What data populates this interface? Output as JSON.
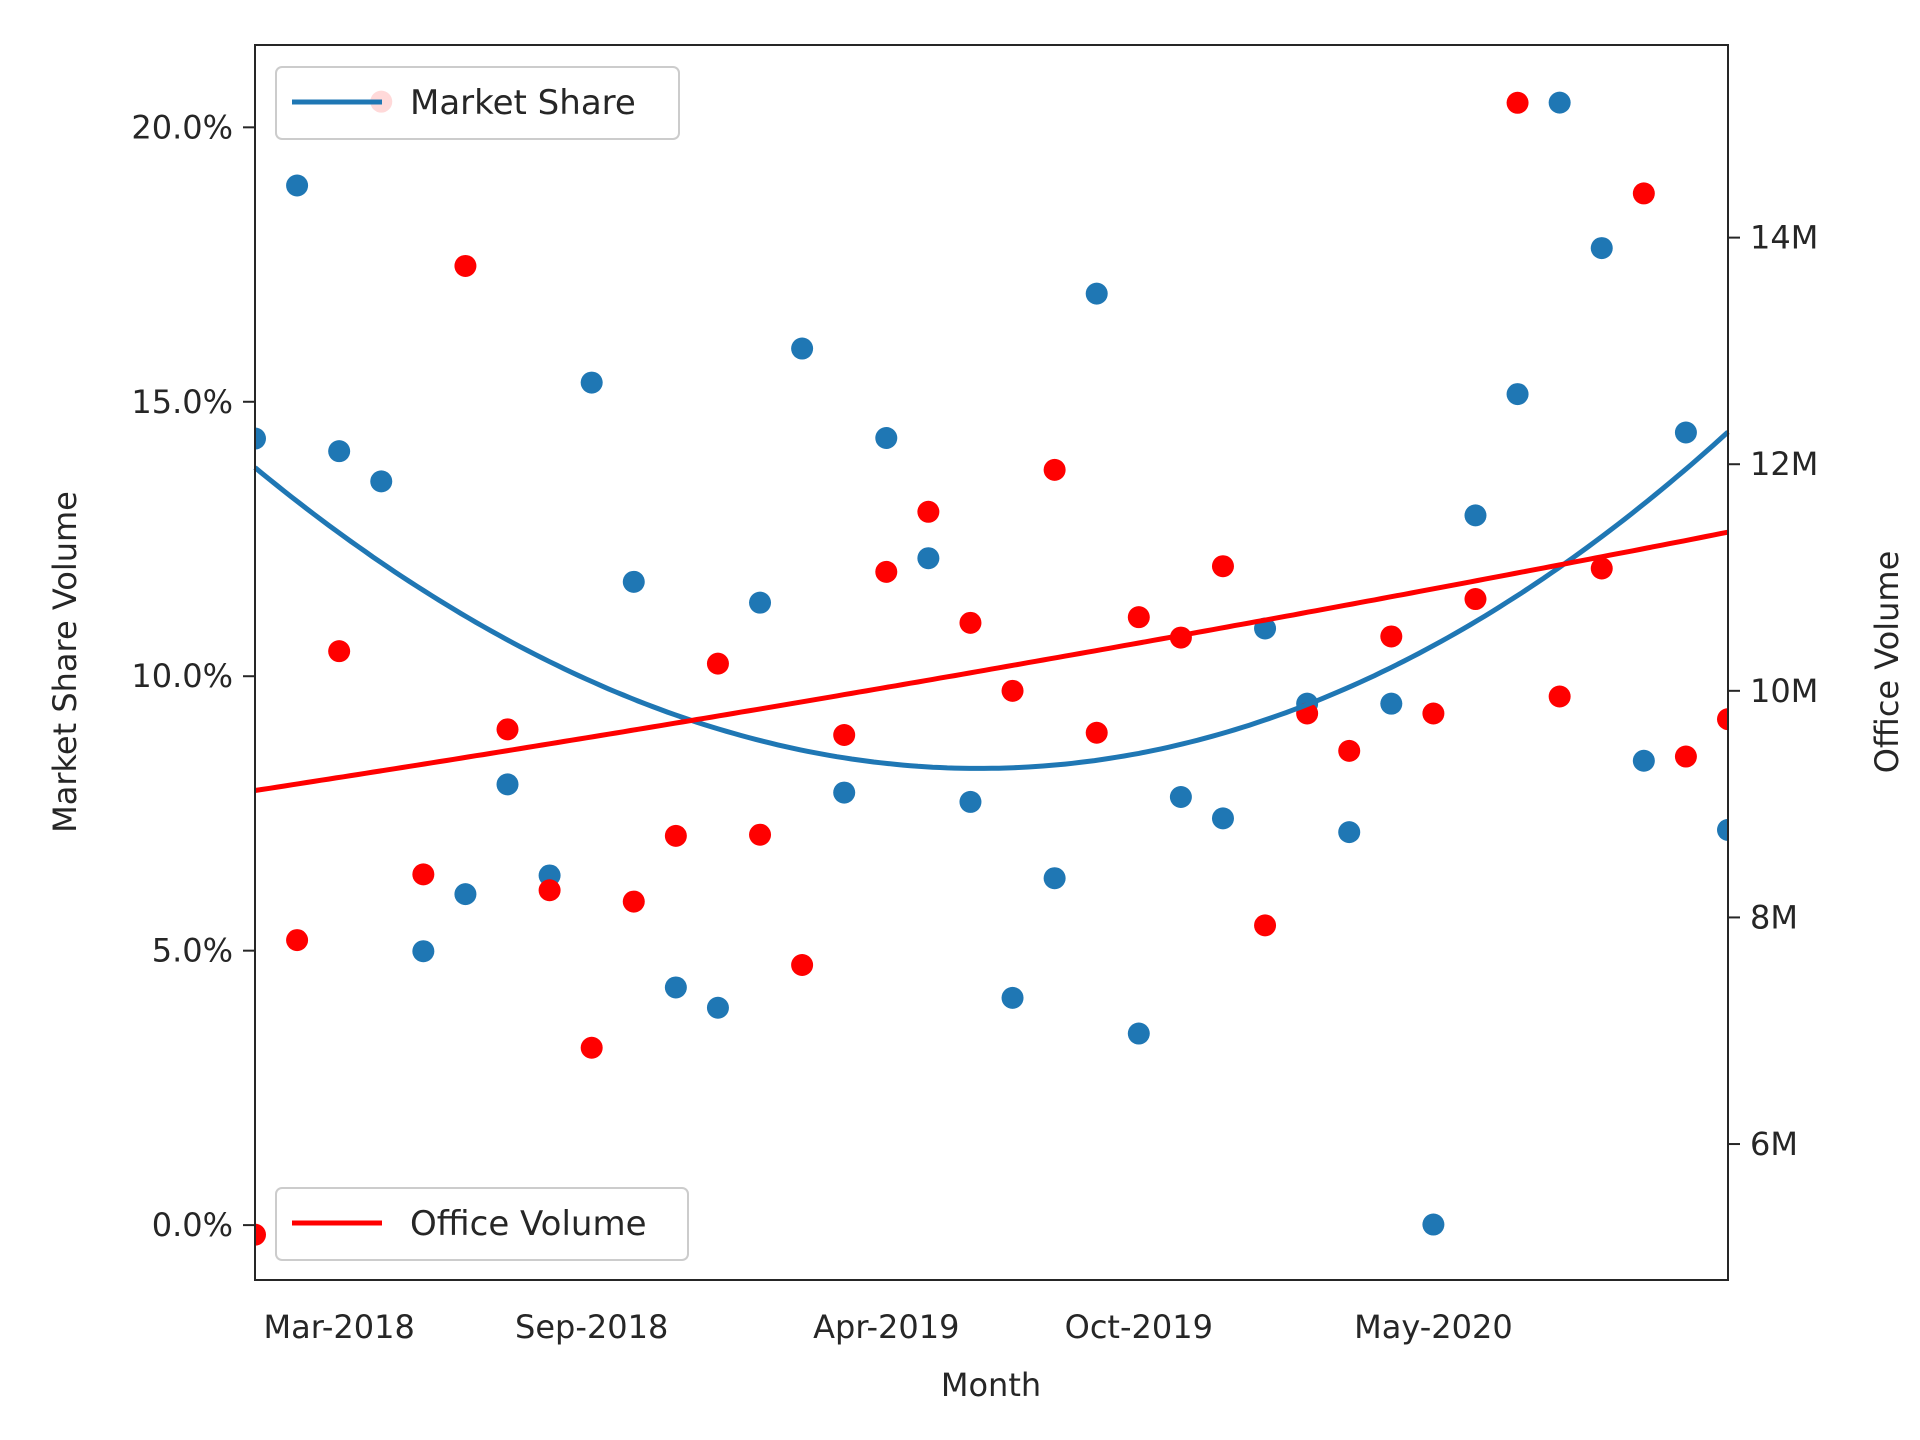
{
  "chart_data": {
    "type": "scatter",
    "xlabel": "Month",
    "ylabel_left": "Market Share Volume",
    "ylabel_right": "Office Volume",
    "x_tick_labels": [
      "Mar-2018",
      "Sep-2018",
      "Apr-2019",
      "Oct-2019",
      "May-2020"
    ],
    "x_tick_months": [
      "2018-03",
      "2018-09",
      "2019-04",
      "2019-10",
      "2020-05"
    ],
    "xlim": [
      "2018-01",
      "2020-12"
    ],
    "left_axis": {
      "ylim": [
        -0.01,
        0.215
      ],
      "ticks": [
        0.0,
        0.05,
        0.1,
        0.15,
        0.2
      ],
      "tick_labels": [
        "0.0%",
        "5.0%",
        "10.0%",
        "15.0%",
        "20.0%"
      ]
    },
    "right_axis": {
      "ylim": [
        4800000,
        15700000
      ],
      "ticks": [
        6000000,
        8000000,
        10000000,
        12000000,
        14000000
      ],
      "tick_labels": [
        "6M",
        "8M",
        "10M",
        "12M",
        "14M"
      ]
    },
    "months": [
      "2018-01",
      "2018-02",
      "2018-03",
      "2018-04",
      "2018-05",
      "2018-06",
      "2018-07",
      "2018-08",
      "2018-09",
      "2018-10",
      "2018-11",
      "2018-12",
      "2019-01",
      "2019-02",
      "2019-03",
      "2019-04",
      "2019-05",
      "2019-06",
      "2019-07",
      "2019-08",
      "2019-09",
      "2019-10",
      "2019-11",
      "2019-12",
      "2020-01",
      "2020-02",
      "2020-03",
      "2020-04",
      "2020-05",
      "2020-06",
      "2020-07",
      "2020-08",
      "2020-09",
      "2020-10",
      "2020-11",
      "2020-12"
    ],
    "series": [
      {
        "name": "Market Share",
        "axis": "left",
        "color": "#1f77b4",
        "values": [
          0.1433,
          0.1894,
          0.141,
          0.1355,
          0.0499,
          0.0603,
          0.0803,
          0.0637,
          0.1535,
          0.1172,
          0.0433,
          0.0396,
          0.1134,
          0.1597,
          0.0788,
          0.1434,
          0.1215,
          0.0771,
          0.0414,
          0.0632,
          0.1697,
          0.0349,
          0.078,
          0.0741,
          0.1087,
          0.095,
          0.0716,
          0.095,
          0.0001,
          0.1293,
          0.1514,
          0.2045,
          0.178,
          0.0846,
          0.1444,
          0.072
        ],
        "trend": {
          "color": "#1f77b4",
          "start": 0.138,
          "min": 0.0832,
          "min_index": 17.2,
          "end": 0.1445
        }
      },
      {
        "name": "Office Volume",
        "axis": "right",
        "color": "#ff0000",
        "values": [
          5200000,
          7800000,
          10350000,
          15200000,
          8380000,
          13750000,
          9660000,
          8240000,
          6850000,
          8140000,
          8720000,
          10240000,
          8730000,
          7580000,
          9610000,
          11050000,
          11580000,
          10600000,
          10000000,
          11950000,
          9630000,
          10650000,
          10470000,
          11100000,
          7930000,
          9800000,
          9470000,
          10480000,
          9800000,
          10810000,
          15190000,
          9950000,
          11080000,
          14390000,
          9420000,
          9750000
        ],
        "trend": {
          "color": "#ff0000",
          "start": 9120000,
          "end": 11400000,
          "curvature": 0.12
        }
      }
    ],
    "legends": [
      {
        "label": "Market Share",
        "position": "upper-left",
        "color": "#1f77b4"
      },
      {
        "label": "Office Volume",
        "position": "lower-left",
        "color": "#ff0000"
      }
    ]
  }
}
